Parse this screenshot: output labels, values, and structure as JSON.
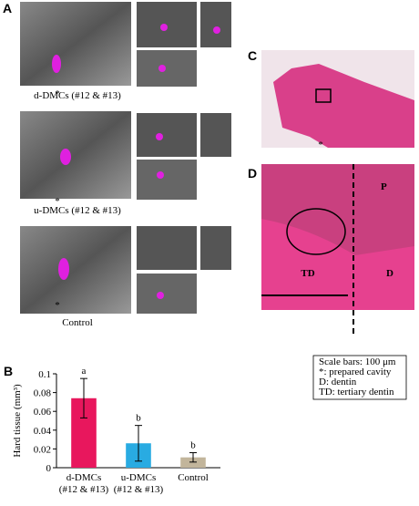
{
  "panels": {
    "a": "A",
    "b": "B",
    "c": "C",
    "d": "D"
  },
  "panel_a": {
    "captions": [
      "d-DMCs (#12 & #13)",
      "u-DMCs (#12 & #13)",
      "Control"
    ],
    "asterisk": "*"
  },
  "panel_c": {
    "asterisk": "*"
  },
  "panel_d": {
    "labels": [
      "P",
      "TD",
      "D"
    ]
  },
  "legend_box": {
    "lines": [
      "Scale bars: 100 μm",
      "*: prepared cavity",
      "D: dentin",
      "TD: tertiary dentin"
    ]
  },
  "chart_data": {
    "type": "bar",
    "y_label": "Hard tissue (mm³)",
    "categories": [
      [
        "d-DMCs",
        "(#12 & #13)"
      ],
      [
        "u-DMCs",
        "(#12 & #13)"
      ],
      [
        "Control"
      ]
    ],
    "values": [
      0.074,
      0.026,
      0.011
    ],
    "errors": [
      0.021,
      0.019,
      0.005
    ],
    "colors": [
      "#e8175d",
      "#29abe2",
      "#c2b59b"
    ],
    "annotations": [
      "a",
      "b",
      "b"
    ],
    "ylim": [
      0,
      0.1
    ],
    "yticks": [
      0,
      0.02,
      0.04,
      0.06,
      0.08,
      0.1
    ]
  }
}
